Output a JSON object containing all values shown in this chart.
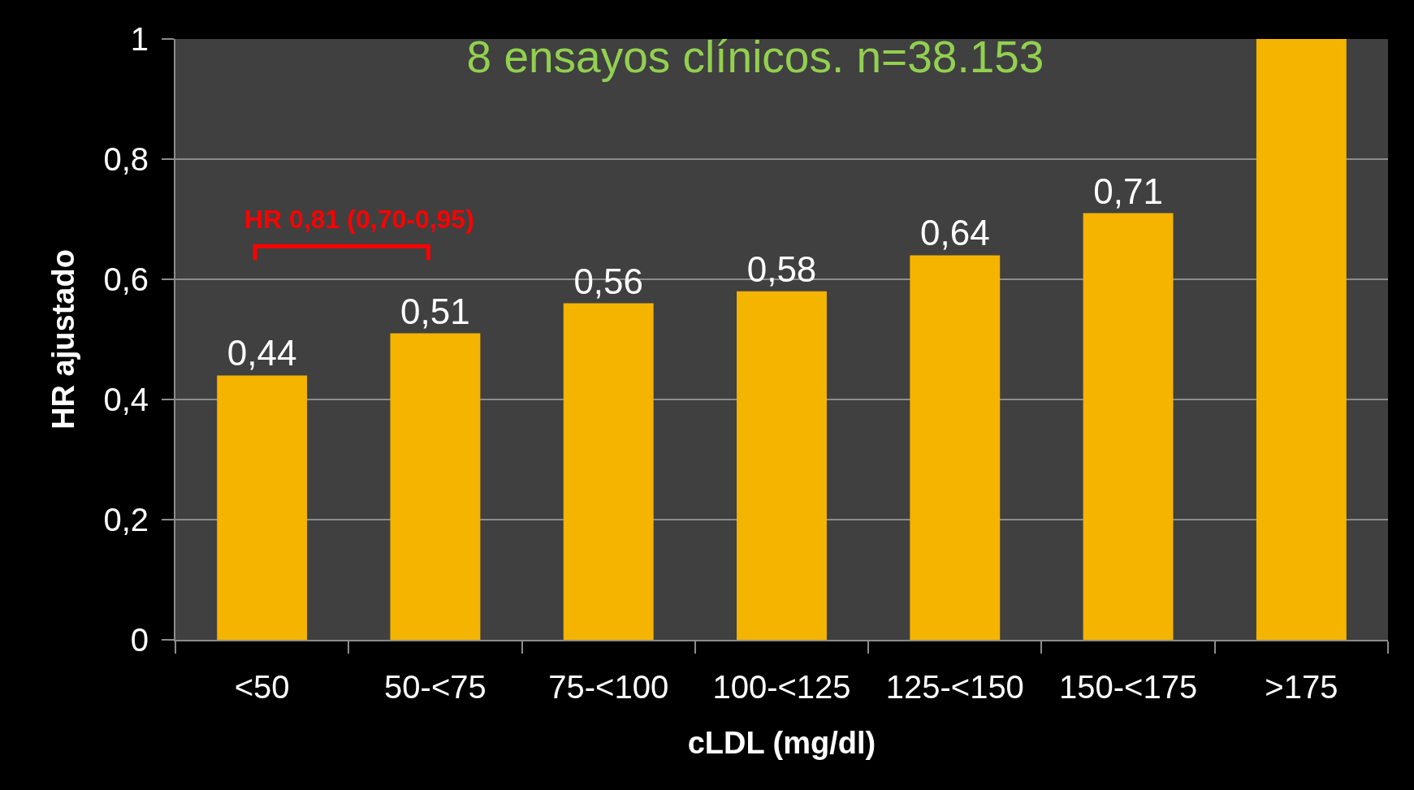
{
  "chart_data": {
    "type": "bar",
    "title": "8 ensayos clínicos. n=38.153",
    "xlabel": "cLDL (mg/dl)",
    "ylabel": "HR ajustado",
    "categories": [
      "<50",
      "50-<75",
      "75-<100",
      "100-<125",
      "125-<150",
      "150-<175",
      ">175"
    ],
    "values": [
      0.44,
      0.51,
      0.56,
      0.58,
      0.64,
      0.71,
      1
    ],
    "value_labels": [
      "0,44",
      "0,51",
      "0,56",
      "0,58",
      "0,64",
      "0,71",
      null
    ],
    "color": "#f5b400",
    "ylim": [
      0,
      1
    ],
    "yticks": [
      0,
      {
        "value": 0.2,
        "label": "0,2"
      },
      {
        "value": 0.4,
        "label": "0,4"
      },
      {
        "value": 0.6,
        "label": "0,6"
      },
      {
        "value": 0.8,
        "label": "0,8"
      },
      1
    ],
    "grid": "y",
    "annotations": [
      "HR 0,81 (0,70-0,95)"
    ]
  }
}
